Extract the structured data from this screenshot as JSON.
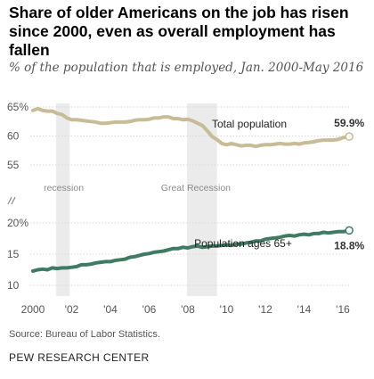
{
  "title": "Share of older Americans on the job has risen since 2000, even as overall employment has fallen",
  "subtitle": "% of the population that is employed, Jan. 2000-May 2016",
  "source": "Source: Bureau of Labor Statistics.",
  "brand": "PEW RESEARCH CENTER",
  "colors": {
    "total": "#c8bc97",
    "older": "#3f7a63",
    "shade": "#ebebeb",
    "grid": "#d9d9d9",
    "text": "#555555"
  },
  "chart_data": {
    "type": "line",
    "x_ticks": [
      {
        "value": 2000,
        "label": "2000"
      },
      {
        "value": 2002,
        "label": "'02"
      },
      {
        "value": 2004,
        "label": "'04"
      },
      {
        "value": 2006,
        "label": "'06"
      },
      {
        "value": 2008,
        "label": "'08"
      },
      {
        "value": 2010,
        "label": "'10"
      },
      {
        "value": 2012,
        "label": "'12"
      },
      {
        "value": 2014,
        "label": "'14"
      },
      {
        "value": 2016,
        "label": "'16"
      }
    ],
    "panels": [
      {
        "id": "total",
        "ylim": [
          55,
          65
        ],
        "ticks": [
          {
            "value": 65,
            "label": "65%"
          },
          {
            "value": 60,
            "label": "60"
          },
          {
            "value": 55,
            "label": "55"
          }
        ]
      },
      {
        "id": "older",
        "ylim": [
          10,
          20
        ],
        "ticks": [
          {
            "value": 20,
            "label": "20%"
          },
          {
            "value": 15,
            "label": "15"
          },
          {
            "value": 10,
            "label": "10"
          }
        ]
      }
    ],
    "recessions": [
      {
        "label": "recession",
        "start": 2001.2,
        "end": 2001.9
      },
      {
        "label": "Great Recession",
        "start": 2007.95,
        "end": 2009.5
      }
    ],
    "series": [
      {
        "name": "Total population",
        "end_label": "59.9%",
        "points": [
          [
            2000.0,
            64.4
          ],
          [
            2000.25,
            64.7
          ],
          [
            2000.5,
            64.4
          ],
          [
            2000.75,
            64.3
          ],
          [
            2001.0,
            64.3
          ],
          [
            2001.25,
            63.9
          ],
          [
            2001.5,
            63.7
          ],
          [
            2001.75,
            63.1
          ],
          [
            2002.0,
            62.8
          ],
          [
            2002.25,
            62.8
          ],
          [
            2002.5,
            62.7
          ],
          [
            2002.75,
            62.6
          ],
          [
            2003.0,
            62.5
          ],
          [
            2003.25,
            62.4
          ],
          [
            2003.5,
            62.2
          ],
          [
            2003.75,
            62.2
          ],
          [
            2004.0,
            62.3
          ],
          [
            2004.25,
            62.4
          ],
          [
            2004.5,
            62.4
          ],
          [
            2004.75,
            62.4
          ],
          [
            2005.0,
            62.5
          ],
          [
            2005.25,
            62.7
          ],
          [
            2005.5,
            62.8
          ],
          [
            2005.75,
            62.8
          ],
          [
            2006.0,
            62.9
          ],
          [
            2006.25,
            63.1
          ],
          [
            2006.5,
            63.1
          ],
          [
            2006.75,
            63.3
          ],
          [
            2007.0,
            63.3
          ],
          [
            2007.25,
            63.0
          ],
          [
            2007.5,
            63.0
          ],
          [
            2007.75,
            62.8
          ],
          [
            2008.0,
            62.9
          ],
          [
            2008.25,
            62.6
          ],
          [
            2008.5,
            62.2
          ],
          [
            2008.75,
            61.8
          ],
          [
            2009.0,
            60.9
          ],
          [
            2009.25,
            59.9
          ],
          [
            2009.5,
            59.4
          ],
          [
            2009.75,
            58.7
          ],
          [
            2010.0,
            58.5
          ],
          [
            2010.25,
            58.7
          ],
          [
            2010.5,
            58.5
          ],
          [
            2010.75,
            58.3
          ],
          [
            2011.0,
            58.4
          ],
          [
            2011.25,
            58.4
          ],
          [
            2011.5,
            58.2
          ],
          [
            2011.75,
            58.4
          ],
          [
            2012.0,
            58.5
          ],
          [
            2012.25,
            58.5
          ],
          [
            2012.5,
            58.6
          ],
          [
            2012.75,
            58.7
          ],
          [
            2013.0,
            58.6
          ],
          [
            2013.25,
            58.6
          ],
          [
            2013.5,
            58.7
          ],
          [
            2013.75,
            58.6
          ],
          [
            2014.0,
            58.8
          ],
          [
            2014.25,
            58.9
          ],
          [
            2014.5,
            59.0
          ],
          [
            2014.75,
            59.2
          ],
          [
            2015.0,
            59.3
          ],
          [
            2015.25,
            59.3
          ],
          [
            2015.5,
            59.3
          ],
          [
            2015.75,
            59.4
          ],
          [
            2016.0,
            59.7
          ],
          [
            2016.2,
            59.8
          ],
          [
            2016.33,
            59.9
          ]
        ]
      },
      {
        "name": "Population ages 65+",
        "end_label": "18.8%",
        "points": [
          [
            2000.0,
            12.3
          ],
          [
            2000.25,
            12.5
          ],
          [
            2000.5,
            12.6
          ],
          [
            2000.75,
            12.5
          ],
          [
            2001.0,
            12.8
          ],
          [
            2001.25,
            12.7
          ],
          [
            2001.5,
            12.8
          ],
          [
            2001.75,
            12.8
          ],
          [
            2002.0,
            12.9
          ],
          [
            2002.25,
            13.0
          ],
          [
            2002.5,
            13.3
          ],
          [
            2002.75,
            13.3
          ],
          [
            2003.0,
            13.4
          ],
          [
            2003.25,
            13.6
          ],
          [
            2003.5,
            13.7
          ],
          [
            2003.75,
            13.8
          ],
          [
            2004.0,
            13.8
          ],
          [
            2004.25,
            14.0
          ],
          [
            2004.5,
            14.1
          ],
          [
            2004.75,
            14.2
          ],
          [
            2005.0,
            14.5
          ],
          [
            2005.25,
            14.6
          ],
          [
            2005.5,
            14.8
          ],
          [
            2005.75,
            15.0
          ],
          [
            2006.0,
            15.1
          ],
          [
            2006.25,
            15.3
          ],
          [
            2006.5,
            15.4
          ],
          [
            2006.75,
            15.5
          ],
          [
            2007.0,
            15.7
          ],
          [
            2007.25,
            15.9
          ],
          [
            2007.5,
            15.9
          ],
          [
            2007.75,
            16.1
          ],
          [
            2008.0,
            16.0
          ],
          [
            2008.25,
            16.2
          ],
          [
            2008.5,
            16.3
          ],
          [
            2008.75,
            16.1
          ],
          [
            2009.0,
            16.2
          ],
          [
            2009.25,
            16.3
          ],
          [
            2009.5,
            16.3
          ],
          [
            2009.75,
            16.4
          ],
          [
            2010.0,
            16.5
          ],
          [
            2010.25,
            16.4
          ],
          [
            2010.5,
            16.6
          ],
          [
            2010.75,
            16.6
          ],
          [
            2011.0,
            16.8
          ],
          [
            2011.25,
            16.9
          ],
          [
            2011.5,
            17.1
          ],
          [
            2011.75,
            17.1
          ],
          [
            2012.0,
            17.4
          ],
          [
            2012.25,
            17.5
          ],
          [
            2012.5,
            17.6
          ],
          [
            2012.75,
            17.7
          ],
          [
            2013.0,
            17.9
          ],
          [
            2013.25,
            18.0
          ],
          [
            2013.5,
            17.9
          ],
          [
            2013.75,
            18.1
          ],
          [
            2014.0,
            18.2
          ],
          [
            2014.25,
            18.1
          ],
          [
            2014.5,
            18.3
          ],
          [
            2014.75,
            18.3
          ],
          [
            2015.0,
            18.5
          ],
          [
            2015.25,
            18.4
          ],
          [
            2015.5,
            18.5
          ],
          [
            2015.75,
            18.6
          ],
          [
            2016.0,
            18.6
          ],
          [
            2016.2,
            18.7
          ],
          [
            2016.33,
            18.8
          ]
        ]
      }
    ]
  }
}
